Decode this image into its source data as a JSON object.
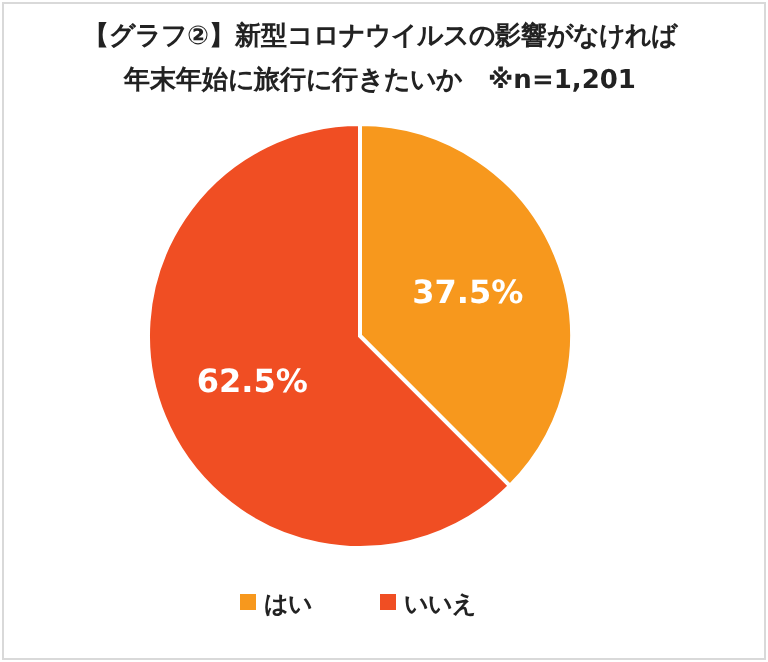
{
  "chart_data": {
    "type": "pie",
    "title": "【グラフ②】新型コロナウイルスの影響がなければ",
    "subtitle": "年末年始に旅行に行きたいか　※n=1,201",
    "categories": [
      "はい",
      "いいえ"
    ],
    "values": [
      37.5,
      62.5
    ],
    "value_labels": [
      "37.5%",
      "62.5%"
    ],
    "colors": [
      "#f7981d",
      "#f04e23"
    ],
    "legend": "bottom"
  }
}
